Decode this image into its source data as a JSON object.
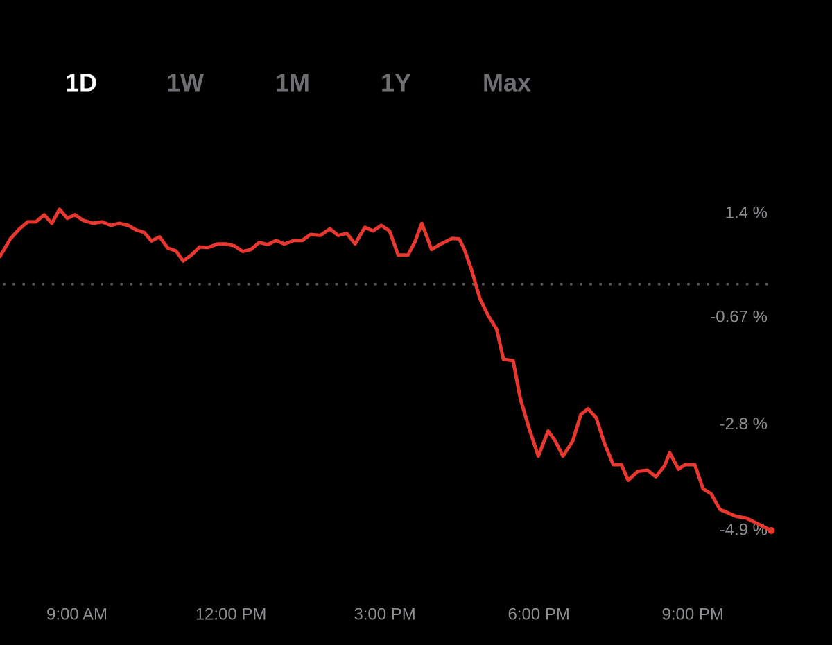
{
  "tabs": {
    "items": [
      "1D",
      "1W",
      "1M",
      "1Y",
      "Max"
    ],
    "active": 0
  },
  "chart_data": {
    "type": "line",
    "x": [
      7.5,
      7.7,
      7.88,
      8.04,
      8.2,
      8.36,
      8.51,
      8.66,
      8.81,
      8.96,
      9.12,
      9.31,
      9.49,
      9.66,
      9.82,
      10.0,
      10.15,
      10.31,
      10.45,
      10.61,
      10.77,
      10.93,
      11.07,
      11.23,
      11.39,
      11.55,
      11.74,
      11.91,
      12.07,
      12.23,
      12.39,
      12.55,
      12.72,
      12.88,
      13.04,
      13.23,
      13.39,
      13.55,
      13.74,
      13.93,
      14.09,
      14.26,
      14.42,
      14.61,
      14.77,
      14.93,
      15.09,
      15.26,
      15.45,
      15.58,
      15.72,
      15.91,
      16.09,
      16.31,
      16.45,
      16.55,
      16.69,
      16.85,
      17.01,
      17.18,
      17.31,
      17.5,
      17.64,
      17.82,
      17.99,
      18.18,
      18.31,
      18.47,
      18.66,
      18.82,
      18.96,
      19.12,
      19.28,
      19.45,
      19.61,
      19.74,
      19.93,
      20.12,
      20.28,
      20.45,
      20.55,
      20.72,
      20.85,
      21.04,
      21.2,
      21.36,
      21.53,
      21.69,
      21.85,
      22.04,
      22.53
    ],
    "series": [
      {
        "color": "#e8372f",
        "values": [
          0.55,
          0.9,
          1.1,
          1.24,
          1.24,
          1.38,
          1.21,
          1.49,
          1.31,
          1.38,
          1.27,
          1.21,
          1.24,
          1.17,
          1.21,
          1.17,
          1.08,
          1.03,
          0.86,
          0.94,
          0.72,
          0.66,
          0.46,
          0.58,
          0.74,
          0.73,
          0.8,
          0.8,
          0.76,
          0.65,
          0.69,
          0.83,
          0.79,
          0.87,
          0.8,
          0.87,
          0.87,
          0.99,
          0.97,
          1.1,
          0.97,
          1.01,
          0.8,
          1.13,
          1.06,
          1.17,
          1.06,
          0.58,
          0.58,
          0.83,
          1.21,
          0.69,
          0.8,
          0.91,
          0.9,
          0.69,
          0.28,
          -0.28,
          -0.62,
          -0.9,
          -1.49,
          -1.52,
          -2.28,
          -2.9,
          -3.42,
          -2.92,
          -3.1,
          -3.42,
          -3.12,
          -2.59,
          -2.48,
          -2.66,
          -3.17,
          -3.59,
          -3.59,
          -3.9,
          -3.72,
          -3.7,
          -3.83,
          -3.61,
          -3.35,
          -3.68,
          -3.59,
          -3.59,
          -4.07,
          -4.17,
          -4.48,
          -4.55,
          -4.62,
          -4.65,
          -4.9
        ]
      }
    ],
    "xlim": [
      7.5,
      22.7
    ],
    "ylim": [
      -6.5,
      3.5
    ],
    "xticks": [
      {
        "value": 9,
        "label": "9:00 AM"
      },
      {
        "value": 12,
        "label": "12:00 PM"
      },
      {
        "value": 15,
        "label": "3:00 PM"
      },
      {
        "value": 18,
        "label": "6:00 PM"
      },
      {
        "value": 21,
        "label": "9:00 PM"
      }
    ],
    "yticks": [
      {
        "value": 1.4,
        "label": "1.4 %"
      },
      {
        "value": -0.67,
        "label": "-0.67 %"
      },
      {
        "value": -2.8,
        "label": "-2.8 %"
      },
      {
        "value": -4.9,
        "label": "-4.9 %"
      }
    ],
    "reference_line": 0
  }
}
